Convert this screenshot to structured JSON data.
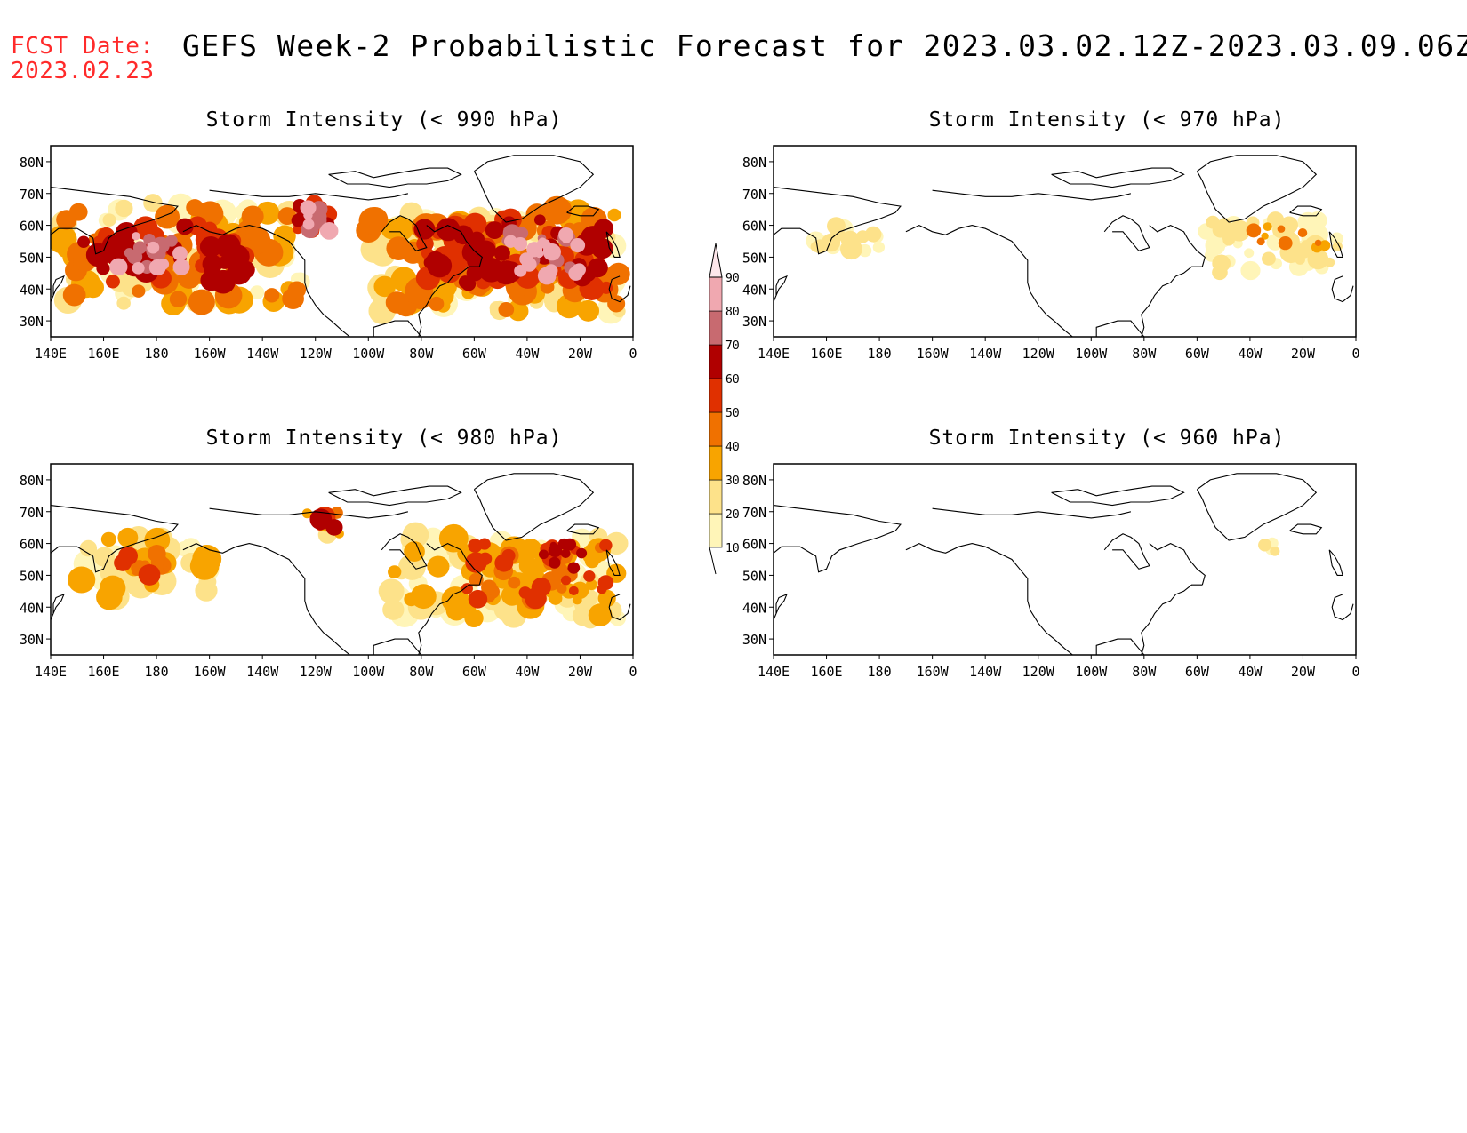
{
  "header": {
    "fcst_label": "FCST Date:",
    "fcst_date": "2023.02.23",
    "title": "GEFS Week-2 Probabilistic Forecast for 2023.03.02.12Z-2023.03.09.06Z"
  },
  "axes": {
    "lat_ticks": [
      "80N",
      "70N",
      "60N",
      "50N",
      "40N",
      "30N"
    ],
    "lon_ticks": [
      "140E",
      "160E",
      "180",
      "160W",
      "140W",
      "120W",
      "100W",
      "80W",
      "60W",
      "40W",
      "20W",
      "0"
    ]
  },
  "panels": [
    {
      "id": "p990",
      "title": "Storm Intensity (< 990 hPa)",
      "intensity": "high"
    },
    {
      "id": "p970",
      "title": "Storm Intensity (< 970 hPa)",
      "intensity": "low"
    },
    {
      "id": "p980",
      "title": "Storm Intensity (< 980 hPa)",
      "intensity": "medium"
    },
    {
      "id": "p960",
      "title": "Storm Intensity (< 960 hPa)",
      "intensity": "minimal"
    }
  ],
  "colorbar": {
    "levels": [
      "10",
      "20",
      "30",
      "40",
      "50",
      "60",
      "70",
      "80",
      "90"
    ],
    "colors": [
      "#fff5b8",
      "#fde28a",
      "#f8a400",
      "#f07100",
      "#e03000",
      "#b00000",
      "#c86a70",
      "#f0a8b0",
      "#fde6ea"
    ]
  }
}
